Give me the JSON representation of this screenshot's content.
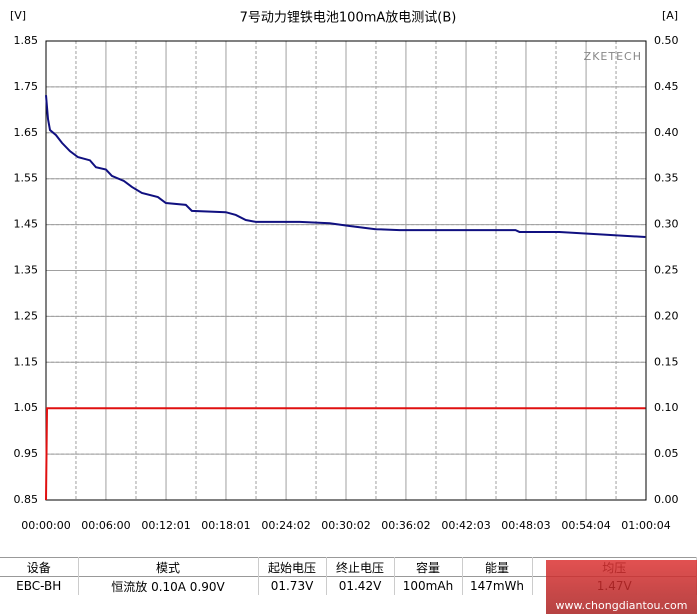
{
  "chart_data": {
    "type": "line",
    "title": "7号动力锂铁电池100mA放电测试(B)",
    "y_label": "[V]",
    "y2_label": "[A]",
    "watermark": "ZKETECH",
    "xlim": [
      0,
      3604
    ],
    "xticks": [
      {
        "value": 0,
        "label": "00:00:00"
      },
      {
        "value": 360,
        "label": "00:06:00"
      },
      {
        "value": 721,
        "label": "00:12:01"
      },
      {
        "value": 1081,
        "label": "00:18:01"
      },
      {
        "value": 1442,
        "label": "00:24:02"
      },
      {
        "value": 1802,
        "label": "00:30:02"
      },
      {
        "value": 2162,
        "label": "00:36:02"
      },
      {
        "value": 2523,
        "label": "00:42:03"
      },
      {
        "value": 2883,
        "label": "00:48:03"
      },
      {
        "value": 3244,
        "label": "00:54:04"
      },
      {
        "value": 3604,
        "label": "01:00:04"
      }
    ],
    "ylim": [
      0.85,
      1.85
    ],
    "yticks": [
      0.85,
      0.95,
      1.05,
      1.15,
      1.25,
      1.35,
      1.45,
      1.55,
      1.65,
      1.75,
      1.85
    ],
    "y2lim": [
      0,
      0.5
    ],
    "y2ticks": [
      {
        "value": 0,
        "label": "0.00"
      },
      0.05,
      {
        "value": 0.1,
        "label": "0.10"
      },
      0.15,
      {
        "value": 0.2,
        "label": "0.20"
      },
      0.25,
      {
        "value": 0.3,
        "label": "0.30"
      },
      0.35,
      {
        "value": 0.4,
        "label": "0.40"
      },
      0.45,
      {
        "value": 0.5,
        "label": "0.50"
      }
    ],
    "grid": true,
    "series": [
      {
        "name": "V",
        "color": "#101080",
        "x": [
          0,
          12,
          24,
          60,
          96,
          144,
          192,
          264,
          300,
          360,
          396,
          468,
          516,
          576,
          672,
          720,
          840,
          876,
          1080,
          1140,
          1200,
          1260,
          1524,
          1704,
          1824,
          1980,
          2124,
          2820,
          2844,
          3084,
          3264,
          3600
        ],
        "values": [
          1.732,
          1.68,
          1.656,
          1.645,
          1.628,
          1.61,
          1.597,
          1.59,
          1.575,
          1.57,
          1.556,
          1.545,
          1.532,
          1.519,
          1.51,
          1.497,
          1.493,
          1.48,
          1.477,
          1.471,
          1.46,
          1.456,
          1.456,
          1.453,
          1.447,
          1.44,
          1.438,
          1.438,
          1.434,
          1.434,
          1.43,
          1.423
        ]
      },
      {
        "name": "A",
        "color": "#e01010",
        "axis": "y2",
        "x": [
          0,
          6,
          3600
        ],
        "values": [
          0,
          0.1,
          0.1
        ]
      }
    ]
  },
  "table": {
    "header": [
      "设备",
      "模式",
      "起始电压",
      "终止电压",
      "容量",
      "能量",
      "均压"
    ],
    "rows": [
      [
        "EBC-BH",
        "恒流放  0.10A  0.90V",
        "01.73V",
        "01.42V",
        "100mAh",
        "147mWh",
        "1.47V"
      ]
    ]
  },
  "footer_logo": "www.chongdiantou.com"
}
